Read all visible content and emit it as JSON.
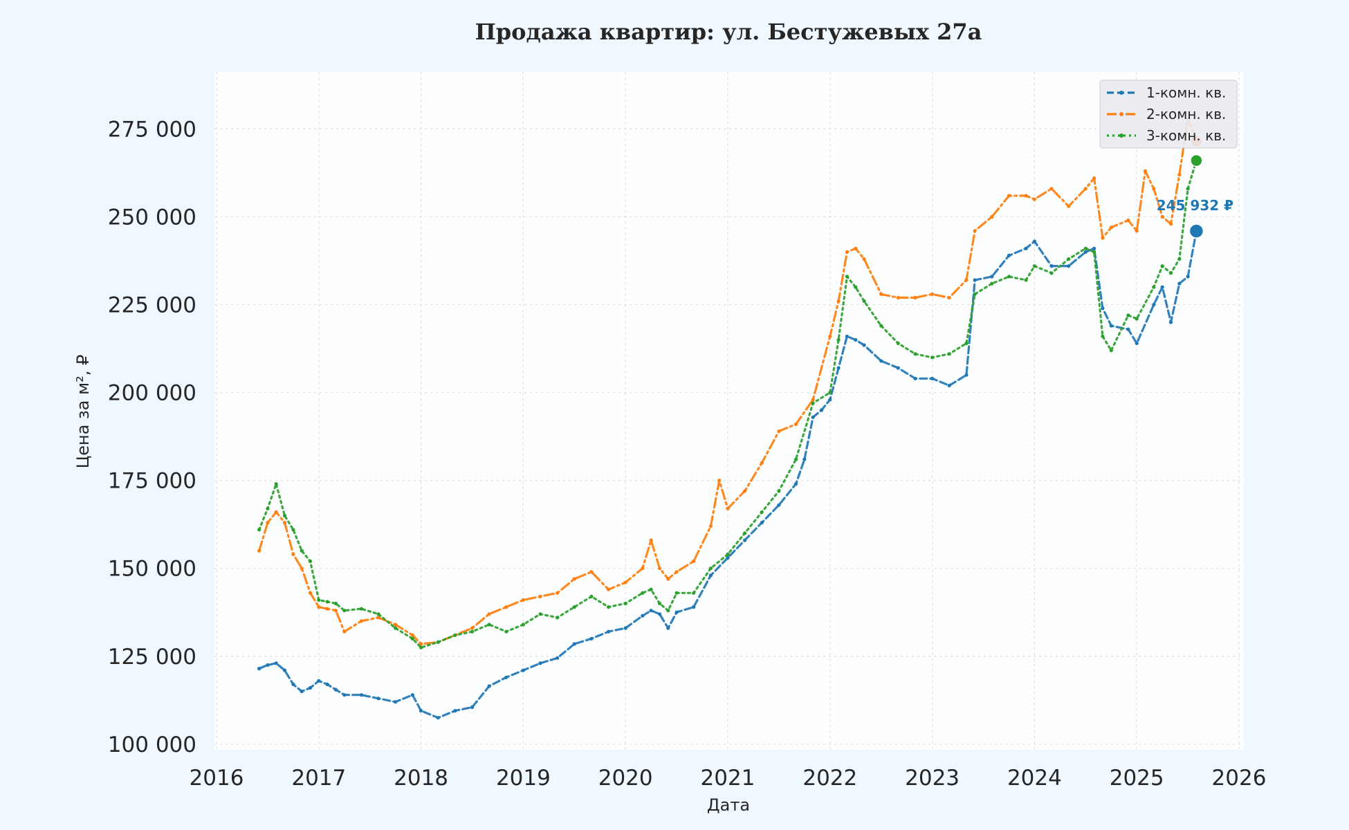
{
  "chart_data": {
    "type": "line",
    "title": "Продажа квартир: ул. Бестужевых 27а",
    "xlabel": "Дата",
    "ylabel": "Цена за м², ₽",
    "x_ticks": [
      "2016",
      "2017",
      "2018",
      "2019",
      "2020",
      "2021",
      "2022",
      "2023",
      "2024",
      "2025",
      "2026"
    ],
    "y_ticks": [
      "100 000",
      "125 000",
      "150 000",
      "175 000",
      "200 000",
      "225 000",
      "250 000",
      "275 000"
    ],
    "xlim": [
      "2016-01-01",
      "2026-01-01"
    ],
    "ylim": [
      98000,
      292000
    ],
    "grid": true,
    "legend_position": "top-right",
    "annotation": "245 932 ₽",
    "series": [
      {
        "name": "1-комн. кв.",
        "color": "#1f77b4",
        "line_style": "dashed",
        "points": [
          [
            "2016-06",
            121500
          ],
          [
            "2016-07",
            122500
          ],
          [
            "2016-08",
            123000
          ],
          [
            "2016-09",
            121000
          ],
          [
            "2016-10",
            117000
          ],
          [
            "2016-11",
            115000
          ],
          [
            "2016-12",
            116000
          ],
          [
            "2017-01",
            118000
          ],
          [
            "2017-02",
            117000
          ],
          [
            "2017-03",
            115500
          ],
          [
            "2017-04",
            114000
          ],
          [
            "2017-06",
            114000
          ],
          [
            "2017-08",
            113000
          ],
          [
            "2017-10",
            112000
          ],
          [
            "2017-12",
            114000
          ],
          [
            "2018-01",
            109500
          ],
          [
            "2018-03",
            107500
          ],
          [
            "2018-05",
            109500
          ],
          [
            "2018-07",
            110500
          ],
          [
            "2018-09",
            116500
          ],
          [
            "2018-11",
            119000
          ],
          [
            "2019-01",
            121000
          ],
          [
            "2019-03",
            123000
          ],
          [
            "2019-05",
            124500
          ],
          [
            "2019-07",
            128500
          ],
          [
            "2019-09",
            130000
          ],
          [
            "2019-11",
            132000
          ],
          [
            "2020-01",
            133000
          ],
          [
            "2020-03",
            136500
          ],
          [
            "2020-04",
            138000
          ],
          [
            "2020-05",
            137000
          ],
          [
            "2020-06",
            133000
          ],
          [
            "2020-07",
            137500
          ],
          [
            "2020-09",
            139000
          ],
          [
            "2020-11",
            148000
          ],
          [
            "2021-01",
            153000
          ],
          [
            "2021-03",
            158000
          ],
          [
            "2021-05",
            163000
          ],
          [
            "2021-07",
            168000
          ],
          [
            "2021-09",
            174000
          ],
          [
            "2021-10",
            181000
          ],
          [
            "2021-11",
            193000
          ],
          [
            "2021-12",
            195000
          ],
          [
            "2022-01",
            198000
          ],
          [
            "2022-02",
            207000
          ],
          [
            "2022-03",
            216000
          ],
          [
            "2022-04",
            215000
          ],
          [
            "2022-05",
            213500
          ],
          [
            "2022-07",
            209000
          ],
          [
            "2022-09",
            207000
          ],
          [
            "2022-11",
            204000
          ],
          [
            "2023-01",
            204000
          ],
          [
            "2023-03",
            202000
          ],
          [
            "2023-05",
            205000
          ],
          [
            "2023-06",
            232000
          ],
          [
            "2023-08",
            233000
          ],
          [
            "2023-10",
            239000
          ],
          [
            "2023-12",
            241000
          ],
          [
            "2024-01",
            243000
          ],
          [
            "2024-03",
            236000
          ],
          [
            "2024-05",
            236000
          ],
          [
            "2024-07",
            240000
          ],
          [
            "2024-08",
            241000
          ],
          [
            "2024-09",
            224000
          ],
          [
            "2024-10",
            219000
          ],
          [
            "2024-12",
            218000
          ],
          [
            "2025-01",
            214000
          ],
          [
            "2025-03",
            225000
          ],
          [
            "2025-04",
            230000
          ],
          [
            "2025-05",
            220000
          ],
          [
            "2025-06",
            231000
          ],
          [
            "2025-07",
            233000
          ],
          [
            "2025-08",
            245932
          ]
        ]
      },
      {
        "name": "2-комн. кв.",
        "color": "#ff7f0e",
        "line_style": "dash-dot",
        "points": [
          [
            "2016-06",
            155000
          ],
          [
            "2016-07",
            163000
          ],
          [
            "2016-08",
            166000
          ],
          [
            "2016-09",
            163000
          ],
          [
            "2016-10",
            154000
          ],
          [
            "2016-11",
            150000
          ],
          [
            "2016-12",
            143000
          ],
          [
            "2017-01",
            139000
          ],
          [
            "2017-02",
            138500
          ],
          [
            "2017-03",
            138000
          ],
          [
            "2017-04",
            132000
          ],
          [
            "2017-06",
            135000
          ],
          [
            "2017-08",
            136000
          ],
          [
            "2017-10",
            134000
          ],
          [
            "2017-12",
            131000
          ],
          [
            "2018-01",
            128500
          ],
          [
            "2018-03",
            129000
          ],
          [
            "2018-05",
            131000
          ],
          [
            "2018-07",
            133000
          ],
          [
            "2018-09",
            137000
          ],
          [
            "2018-11",
            139000
          ],
          [
            "2019-01",
            141000
          ],
          [
            "2019-03",
            142000
          ],
          [
            "2019-05",
            143000
          ],
          [
            "2019-07",
            147000
          ],
          [
            "2019-09",
            149000
          ],
          [
            "2019-11",
            144000
          ],
          [
            "2020-01",
            146000
          ],
          [
            "2020-03",
            150000
          ],
          [
            "2020-04",
            158000
          ],
          [
            "2020-05",
            150000
          ],
          [
            "2020-06",
            147000
          ],
          [
            "2020-07",
            149000
          ],
          [
            "2020-09",
            152000
          ],
          [
            "2020-11",
            162000
          ],
          [
            "2020-12",
            175000
          ],
          [
            "2021-01",
            167000
          ],
          [
            "2021-03",
            172000
          ],
          [
            "2021-05",
            180000
          ],
          [
            "2021-07",
            189000
          ],
          [
            "2021-09",
            191000
          ],
          [
            "2021-11",
            198000
          ],
          [
            "2022-01",
            216000
          ],
          [
            "2022-02",
            226000
          ],
          [
            "2022-03",
            240000
          ],
          [
            "2022-04",
            241000
          ],
          [
            "2022-05",
            238000
          ],
          [
            "2022-07",
            228000
          ],
          [
            "2022-09",
            227000
          ],
          [
            "2022-11",
            227000
          ],
          [
            "2023-01",
            228000
          ],
          [
            "2023-03",
            227000
          ],
          [
            "2023-05",
            232000
          ],
          [
            "2023-06",
            246000
          ],
          [
            "2023-08",
            250000
          ],
          [
            "2023-10",
            256000
          ],
          [
            "2023-12",
            256000
          ],
          [
            "2024-01",
            255000
          ],
          [
            "2024-03",
            258000
          ],
          [
            "2024-05",
            253000
          ],
          [
            "2024-07",
            258000
          ],
          [
            "2024-08",
            261000
          ],
          [
            "2024-09",
            244000
          ],
          [
            "2024-10",
            247000
          ],
          [
            "2024-12",
            249000
          ],
          [
            "2025-01",
            246000
          ],
          [
            "2025-02",
            263000
          ],
          [
            "2025-03",
            258000
          ],
          [
            "2025-04",
            250000
          ],
          [
            "2025-05",
            248000
          ],
          [
            "2025-06",
            262000
          ],
          [
            "2025-07",
            278000
          ],
          [
            "2025-08",
            271500
          ]
        ]
      },
      {
        "name": "3-комн. кв.",
        "color": "#2ca02c",
        "line_style": "dotted",
        "points": [
          [
            "2016-06",
            161000
          ],
          [
            "2016-07",
            167000
          ],
          [
            "2016-08",
            174000
          ],
          [
            "2016-09",
            165000
          ],
          [
            "2016-10",
            161000
          ],
          [
            "2016-11",
            155000
          ],
          [
            "2016-12",
            152000
          ],
          [
            "2017-01",
            141000
          ],
          [
            "2017-02",
            140500
          ],
          [
            "2017-03",
            140000
          ],
          [
            "2017-04",
            138000
          ],
          [
            "2017-06",
            138500
          ],
          [
            "2017-08",
            137000
          ],
          [
            "2017-10",
            133000
          ],
          [
            "2017-12",
            130000
          ],
          [
            "2018-01",
            127500
          ],
          [
            "2018-03",
            129000
          ],
          [
            "2018-05",
            131000
          ],
          [
            "2018-07",
            132000
          ],
          [
            "2018-09",
            134000
          ],
          [
            "2018-11",
            132000
          ],
          [
            "2019-01",
            134000
          ],
          [
            "2019-03",
            137000
          ],
          [
            "2019-05",
            136000
          ],
          [
            "2019-07",
            139000
          ],
          [
            "2019-09",
            142000
          ],
          [
            "2019-11",
            139000
          ],
          [
            "2020-01",
            140000
          ],
          [
            "2020-03",
            143000
          ],
          [
            "2020-04",
            144000
          ],
          [
            "2020-05",
            140000
          ],
          [
            "2020-06",
            138000
          ],
          [
            "2020-07",
            143000
          ],
          [
            "2020-09",
            143000
          ],
          [
            "2020-11",
            150000
          ],
          [
            "2021-01",
            154000
          ],
          [
            "2021-03",
            160000
          ],
          [
            "2021-05",
            166000
          ],
          [
            "2021-07",
            172000
          ],
          [
            "2021-09",
            181000
          ],
          [
            "2021-11",
            197000
          ],
          [
            "2022-01",
            200000
          ],
          [
            "2022-02",
            215000
          ],
          [
            "2022-03",
            233000
          ],
          [
            "2022-04",
            230000
          ],
          [
            "2022-05",
            226000
          ],
          [
            "2022-07",
            219000
          ],
          [
            "2022-09",
            214000
          ],
          [
            "2022-11",
            211000
          ],
          [
            "2023-01",
            210000
          ],
          [
            "2023-03",
            211000
          ],
          [
            "2023-05",
            214000
          ],
          [
            "2023-06",
            228000
          ],
          [
            "2023-08",
            231000
          ],
          [
            "2023-10",
            233000
          ],
          [
            "2023-12",
            232000
          ],
          [
            "2024-01",
            236000
          ],
          [
            "2024-03",
            234000
          ],
          [
            "2024-05",
            238000
          ],
          [
            "2024-07",
            241000
          ],
          [
            "2024-08",
            240000
          ],
          [
            "2024-09",
            216000
          ],
          [
            "2024-10",
            212000
          ],
          [
            "2024-12",
            222000
          ],
          [
            "2025-01",
            221000
          ],
          [
            "2025-03",
            230000
          ],
          [
            "2025-04",
            236000
          ],
          [
            "2025-05",
            234000
          ],
          [
            "2025-06",
            238000
          ],
          [
            "2025-07",
            258000
          ],
          [
            "2025-08",
            266000
          ]
        ]
      }
    ]
  }
}
